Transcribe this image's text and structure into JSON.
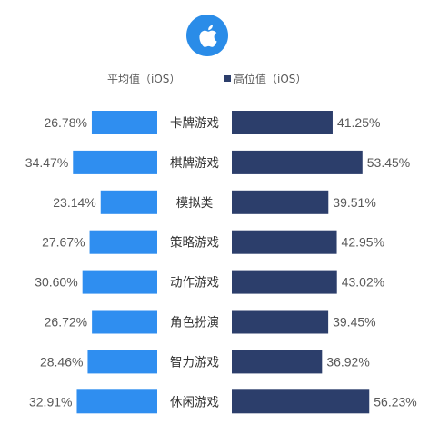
{
  "brand_logo": {
    "icon": "apple-icon",
    "color": "#2a8ce8"
  },
  "legend": {
    "avg_label": "平均值（iOS）",
    "high_label": "高位值（iOS）"
  },
  "colors": {
    "avg": "#2f8ef0",
    "high": "#2c3e6b",
    "text": "#595959"
  },
  "chart_data": {
    "type": "bar",
    "categories": [
      "卡牌游戏",
      "棋牌游戏",
      "模拟类",
      "策略游戏",
      "动作游戏",
      "角色扮演",
      "智力游戏",
      "休闲游戏"
    ],
    "series": [
      {
        "name": "平均值（iOS）",
        "values": [
          26.78,
          34.47,
          23.14,
          27.67,
          30.6,
          26.72,
          28.46,
          32.91
        ],
        "labels": [
          "26.78%",
          "34.47%",
          "23.14%",
          "27.67%",
          "30.60%",
          "26.72%",
          "28.46%",
          "32.91%"
        ]
      },
      {
        "name": "高位值（iOS）",
        "values": [
          41.25,
          53.45,
          39.51,
          42.95,
          43.02,
          39.45,
          36.92,
          56.23
        ],
        "labels": [
          "41.25%",
          "53.45%",
          "39.51%",
          "42.95%",
          "43.02%",
          "39.45%",
          "36.92%",
          "56.23%"
        ]
      }
    ],
    "orientation": "diverging-horizontal",
    "grid": false,
    "legend_position": "top"
  }
}
